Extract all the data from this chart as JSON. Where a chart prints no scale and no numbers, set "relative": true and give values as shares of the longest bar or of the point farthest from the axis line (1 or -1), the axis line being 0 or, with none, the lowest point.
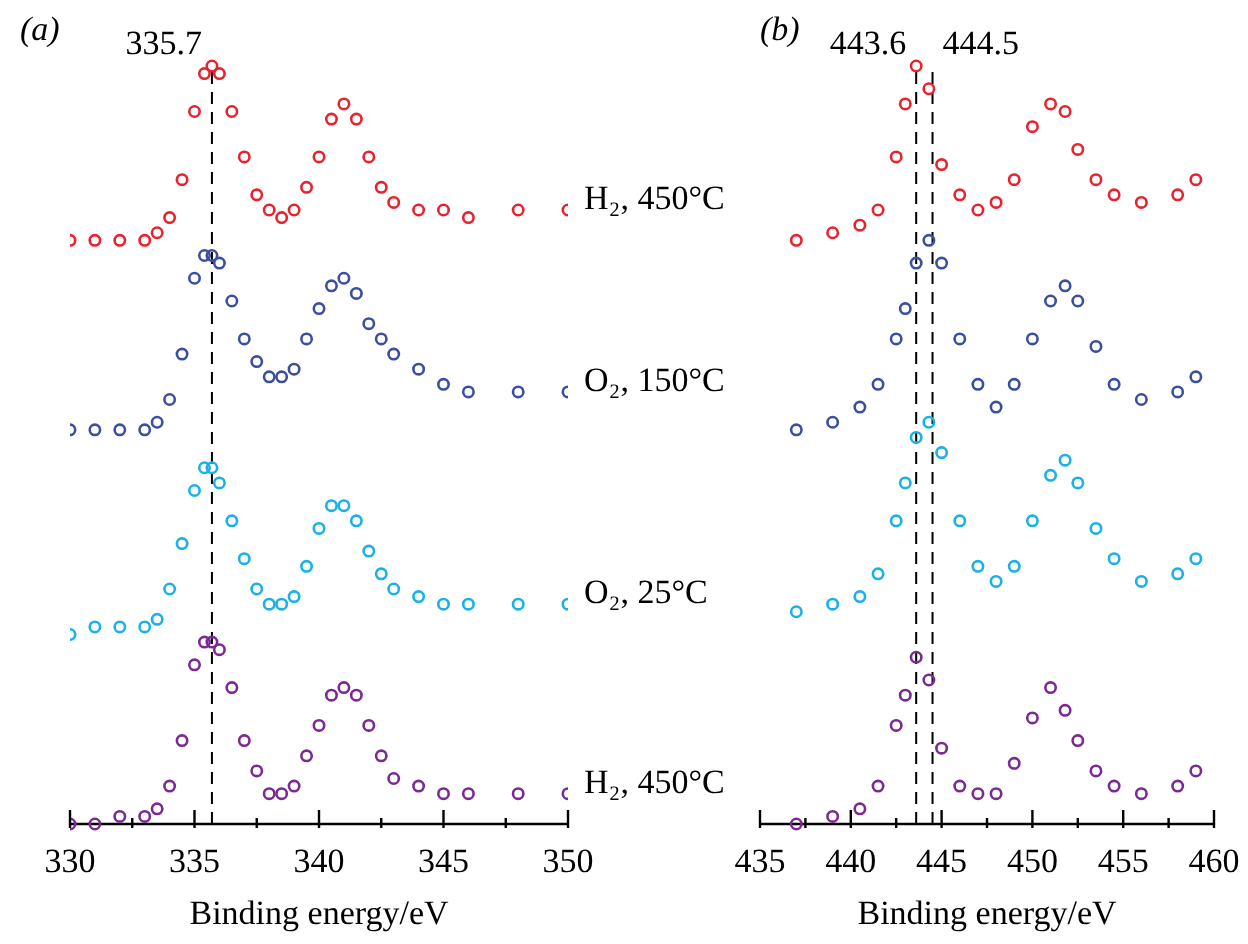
{
  "chart_data": [
    {
      "type": "scatter",
      "relative": true,
      "marker": "circle",
      "annotations": [
        "(a)"
      ],
      "xlabel": "Binding energy/eV",
      "xlim": [
        330,
        350
      ],
      "xticks": [
        330,
        {
          "value": 332.5,
          "label": null
        },
        335,
        {
          "value": 337.5,
          "label": null
        },
        340,
        {
          "value": 342.5,
          "label": null
        },
        345,
        {
          "value": 347.5,
          "label": null
        },
        350
      ],
      "ref_lines": [
        {
          "axis": "x",
          "value": 335.7,
          "label": "335.7",
          "color": "#000000",
          "line_style": "dashed"
        }
      ],
      "x": [
        330,
        331,
        332,
        333,
        333.5,
        334,
        334.5,
        335,
        335.4,
        335.7,
        336,
        336.5,
        337,
        337.5,
        338,
        338.5,
        339,
        339.5,
        340,
        340.5,
        341,
        341.5,
        342,
        342.5,
        343,
        344,
        345,
        346,
        348,
        350
      ],
      "series": [
        {
          "name": "H₂, 450°C",
          "color": "#e8222e",
          "values": [
            0.77,
            0.77,
            0.77,
            0.77,
            0.78,
            0.8,
            0.85,
            0.94,
            0.99,
            1,
            0.99,
            0.94,
            0.88,
            0.83,
            0.81,
            0.8,
            0.81,
            0.84,
            0.88,
            0.93,
            0.95,
            0.93,
            0.88,
            0.84,
            0.82,
            0.81,
            0.81,
            0.8,
            0.81,
            0.81
          ]
        },
        {
          "name": "O₂, 150°C",
          "color": "#3a4fa0",
          "values": [
            0.52,
            0.52,
            0.52,
            0.52,
            0.53,
            0.56,
            0.62,
            0.72,
            0.75,
            0.75,
            0.74,
            0.69,
            0.64,
            0.61,
            0.59,
            0.59,
            0.6,
            0.64,
            0.68,
            0.71,
            0.72,
            0.7,
            0.66,
            0.64,
            0.62,
            0.6,
            0.58,
            0.57,
            0.57,
            0.57
          ]
        },
        {
          "name": "O₂, 25°C",
          "color": "#1ab0e8",
          "values": [
            0.25,
            0.26,
            0.26,
            0.26,
            0.27,
            0.31,
            0.37,
            0.44,
            0.47,
            0.47,
            0.45,
            0.4,
            0.35,
            0.31,
            0.29,
            0.29,
            0.3,
            0.34,
            0.39,
            0.42,
            0.42,
            0.4,
            0.36,
            0.33,
            0.31,
            0.3,
            0.29,
            0.29,
            0.29,
            0.29
          ]
        },
        {
          "name": "H₂, 450°C",
          "color": "#7a2a92",
          "values": [
            0,
            0,
            0.01,
            0.01,
            0.02,
            0.05,
            0.11,
            0.21,
            0.24,
            0.24,
            0.23,
            0.18,
            0.11,
            0.07,
            0.04,
            0.04,
            0.05,
            0.09,
            0.13,
            0.17,
            0.18,
            0.17,
            0.13,
            0.09,
            0.06,
            0.05,
            0.04,
            0.04,
            0.04,
            0.04
          ]
        }
      ]
    },
    {
      "type": "scatter",
      "relative": true,
      "marker": "circle",
      "annotations": [
        "(b)"
      ],
      "xlabel": "Binding energy/eV",
      "xlim": [
        435,
        460
      ],
      "xticks": [
        435,
        {
          "value": 437.5,
          "label": null
        },
        440,
        {
          "value": 442.5,
          "label": null
        },
        445,
        {
          "value": 447.5,
          "label": null
        },
        450,
        {
          "value": 452.5,
          "label": null
        },
        455,
        {
          "value": 457.5,
          "label": null
        },
        460
      ],
      "ref_lines": [
        {
          "axis": "x",
          "value": 443.6,
          "label": "443.6",
          "color": "#000000",
          "line_style": "dashed"
        },
        {
          "axis": "x",
          "value": 444.5,
          "label": "444.5",
          "color": "#000000",
          "line_style": "dashed"
        }
      ],
      "x": [
        437,
        439,
        440.5,
        441.5,
        442.5,
        443,
        443.6,
        444.3,
        445,
        446,
        447,
        448,
        449,
        450,
        451,
        451.8,
        452.5,
        453.5,
        454.5,
        456,
        458,
        459
      ],
      "series": [
        {
          "color": "#e8222e",
          "values": [
            0.77,
            0.78,
            0.79,
            0.81,
            0.88,
            0.95,
            1,
            0.97,
            0.87,
            0.83,
            0.81,
            0.82,
            0.85,
            0.92,
            0.95,
            0.94,
            0.89,
            0.85,
            0.83,
            0.82,
            0.83,
            0.85
          ]
        },
        {
          "color": "#3a4fa0",
          "values": [
            0.52,
            0.53,
            0.55,
            0.58,
            0.64,
            0.68,
            0.74,
            0.77,
            0.74,
            0.64,
            0.58,
            0.55,
            0.58,
            0.64,
            0.69,
            0.71,
            0.69,
            0.63,
            0.58,
            0.56,
            0.57,
            0.59
          ]
        },
        {
          "color": "#1ab0e8",
          "values": [
            0.28,
            0.29,
            0.3,
            0.33,
            0.4,
            0.45,
            0.51,
            0.53,
            0.49,
            0.4,
            0.34,
            0.32,
            0.34,
            0.4,
            0.46,
            0.48,
            0.45,
            0.39,
            0.35,
            0.32,
            0.33,
            0.35
          ]
        },
        {
          "color": "#7a2a92",
          "values": [
            0,
            0.01,
            0.02,
            0.05,
            0.13,
            0.17,
            0.22,
            0.19,
            0.1,
            0.05,
            0.04,
            0.04,
            0.08,
            0.14,
            0.18,
            0.15,
            0.11,
            0.07,
            0.05,
            0.04,
            0.05,
            0.07
          ]
        }
      ]
    }
  ]
}
